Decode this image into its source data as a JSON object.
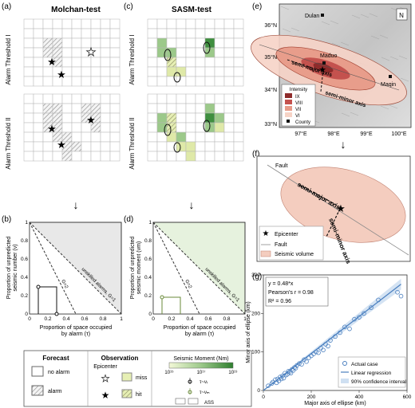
{
  "panels": {
    "a": {
      "label": "(a)",
      "title": "Molchan-test",
      "row1": "Alarm Threshold I",
      "row2": "Alarm Threshold II"
    },
    "b": {
      "label": "(b)",
      "ylabel1": "Proportion of unpredicted",
      "ylabel2": "seismic number (ν)",
      "xlabel1": "Proportion of space occupied",
      "xlabel2": "by alarm (τ)",
      "curve_unskilled": "unskilled alarms, G=1",
      "curve_g2": "G=2"
    },
    "c": {
      "label": "(c)",
      "title": "SASM-test",
      "row1": "Alarm Threshold I",
      "row2": "Alarm Threshold II"
    },
    "d": {
      "label": "(d)",
      "ylabel1": "Proportion of unpredicted",
      "ylabel2": "seismic moment (νm)",
      "xlabel1": "Proportion of space occupied",
      "xlabel2": "by alarm (τ)",
      "curve_unskilled": "unskilled alarms, G=1",
      "curve_g2": "G=2"
    },
    "e": {
      "label": "(e)",
      "city1": "Dulan",
      "city2": "Maduo",
      "city3": "Maqin",
      "major": "semi-major axis",
      "minor": "semi-minor axis",
      "legend_title": "Intensity",
      "legend": [
        "IX",
        "VIII",
        "VII",
        "VI"
      ],
      "county": "County",
      "north": "N"
    },
    "f": {
      "label": "(f)",
      "fault": "Fault",
      "major": "semi-major axis",
      "minor": "semi-minor axis",
      "legend_epicenter": "Epicenter",
      "legend_fault": "Fault",
      "legend_volume": "Seismic volume"
    },
    "g": {
      "label": "(g)",
      "eq1": "y = 0.48*x",
      "eq2": "Pearson's r = 0.98",
      "eq3": "R² = 0.96",
      "ylabel": "Minor axis of ellipse (km)",
      "xlabel": "Major axis of ellipse (km)",
      "legend": [
        "Actual case",
        "Linear regression",
        "90% confidence interval"
      ]
    }
  },
  "ticks_01": [
    "0",
    "0.2",
    "0.4",
    "0.6",
    "0.8",
    "1"
  ],
  "map_lat": [
    "36°N",
    "35°N",
    "34°N",
    "33°N"
  ],
  "map_lon": [
    "97°E",
    "98°E",
    "99°E",
    "100°E"
  ],
  "g_xticks": [
    "0",
    "200",
    "400",
    "600"
  ],
  "g_yticks": [
    "0",
    "100",
    "200",
    "300"
  ],
  "key": {
    "forecast_title": "Forecast",
    "no_alarm": "no alarm",
    "alarm": "alarm",
    "obs_title": "Observation",
    "epicenter_title": "Epicenter",
    "miss": "miss",
    "hit": "hit",
    "moment_title": "Seismic Moment (Nm)",
    "cb_ticks": [
      "10¹⁵",
      "10¹⁷",
      "10¹⁹"
    ],
    "tau_vr": "τ~νᵣ",
    "tau_vm": "τ~νₘ",
    "ass": "ASS"
  },
  "colors": {
    "hatch": "#8a8a8a",
    "green_light": "#dfe9a8",
    "green_mid": "#9cc98a",
    "green_dark": "#3f8f3f",
    "int9": "#8e2b2b",
    "int8": "#c4524e",
    "int7": "#e79a88",
    "int6": "#f6d3c6",
    "shade": "#e8e8e8",
    "shade_green": "#e6f2de",
    "blue": "#6a9fd0"
  },
  "chart_data": {
    "type": "scatter",
    "xlabel": "Major axis of ellipse (km)",
    "ylabel": "Minor axis of ellipse (km)",
    "xlim": [
      0,
      600
    ],
    "ylim": [
      0,
      300
    ],
    "regression": {
      "slope": 0.48,
      "r": 0.98,
      "r2": 0.96
    },
    "series": [
      {
        "name": "Actual case",
        "points": [
          [
            20,
            12
          ],
          [
            35,
            18
          ],
          [
            40,
            22
          ],
          [
            50,
            28
          ],
          [
            55,
            20
          ],
          [
            60,
            30
          ],
          [
            65,
            25
          ],
          [
            70,
            35
          ],
          [
            75,
            30
          ],
          [
            80,
            38
          ],
          [
            85,
            32
          ],
          [
            90,
            45
          ],
          [
            95,
            40
          ],
          [
            100,
            42
          ],
          [
            105,
            50
          ],
          [
            110,
            48
          ],
          [
            115,
            45
          ],
          [
            120,
            55
          ],
          [
            125,
            52
          ],
          [
            130,
            60
          ],
          [
            135,
            58
          ],
          [
            140,
            65
          ],
          [
            150,
            70
          ],
          [
            160,
            68
          ],
          [
            170,
            80
          ],
          [
            180,
            75
          ],
          [
            190,
            85
          ],
          [
            200,
            90
          ],
          [
            210,
            95
          ],
          [
            220,
            100
          ],
          [
            230,
            98
          ],
          [
            240,
            110
          ],
          [
            250,
            105
          ],
          [
            260,
            120
          ],
          [
            270,
            115
          ],
          [
            280,
            130
          ],
          [
            300,
            140
          ],
          [
            320,
            150
          ],
          [
            340,
            165
          ],
          [
            360,
            160
          ],
          [
            380,
            185
          ],
          [
            400,
            190
          ],
          [
            420,
            200
          ],
          [
            450,
            215
          ],
          [
            480,
            235
          ],
          [
            560,
            255
          ],
          [
            575,
            245
          ]
        ]
      }
    ]
  }
}
